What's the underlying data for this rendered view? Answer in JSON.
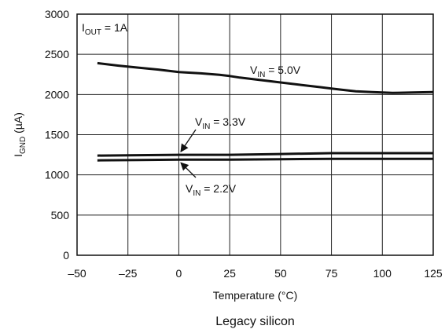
{
  "chart_data": {
    "type": "line",
    "title": "",
    "caption": "Legacy silicon",
    "xlabel": "Temperature (°C)",
    "ylabel": {
      "main": "I",
      "sub": "GND",
      "rest": " (µA)"
    },
    "xlim": [
      -50,
      125
    ],
    "ylim": [
      0,
      3000
    ],
    "xticks": [
      -50,
      -25,
      0,
      25,
      50,
      75,
      100,
      125
    ],
    "yticks": [
      0,
      500,
      1000,
      1500,
      2000,
      2500,
      3000
    ],
    "xtick_labels": [
      "–50",
      "–25",
      "0",
      "25",
      "50",
      "75",
      "100",
      "125"
    ],
    "ytick_labels": [
      "0",
      "500",
      "1000",
      "1500",
      "2000",
      "2500",
      "3000"
    ],
    "grid": true,
    "series": [
      {
        "name": "VIN = 5.0V",
        "label": {
          "main": "V",
          "sub": "IN",
          "rest": " = 5.0V"
        },
        "x": [
          -40,
          -30,
          -20,
          -10,
          0,
          10,
          20,
          25,
          30,
          40,
          50,
          60,
          70,
          75,
          80,
          87,
          95,
          105,
          115,
          125
        ],
        "y": [
          2390,
          2360,
          2335,
          2310,
          2280,
          2265,
          2245,
          2230,
          2210,
          2180,
          2150,
          2120,
          2090,
          2075,
          2060,
          2040,
          2030,
          2020,
          2025,
          2030
        ]
      },
      {
        "name": "VIN = 3.3V",
        "label": {
          "main": "V",
          "sub": "IN",
          "rest": " = 3.3V"
        },
        "x": [
          -40,
          -20,
          0,
          25,
          50,
          75,
          100,
          125
        ],
        "y": [
          1240,
          1245,
          1250,
          1250,
          1260,
          1270,
          1270,
          1270
        ]
      },
      {
        "name": "VIN = 2.2V",
        "label": {
          "main": "V",
          "sub": "IN",
          "rest": " = 2.2V"
        },
        "x": [
          -40,
          -20,
          0,
          25,
          50,
          75,
          100,
          125
        ],
        "y": [
          1180,
          1185,
          1190,
          1190,
          1195,
          1200,
          1200,
          1200
        ]
      }
    ],
    "annotations": [
      {
        "main": "I",
        "sub": "OUT",
        "rest": " = 1A"
      }
    ]
  },
  "colors": {
    "line": "#111111",
    "grid": "#222222",
    "background": "#ffffff"
  }
}
